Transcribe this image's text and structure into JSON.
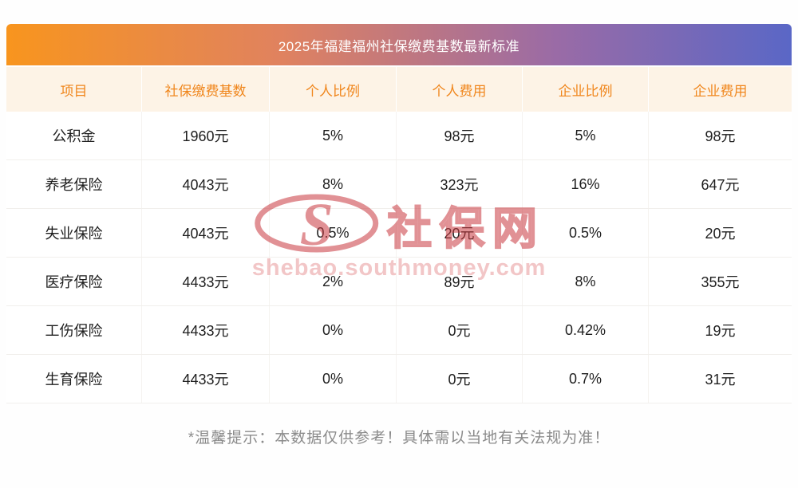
{
  "title": "2025年福建福州社保缴费基数最新标准",
  "chart_data": {
    "type": "table",
    "title": "2025年福建福州社保缴费基数最新标准",
    "columns": [
      "项目",
      "社保缴费基数",
      "个人比例",
      "个人费用",
      "企业比例",
      "企业费用"
    ],
    "rows": [
      [
        "公积金",
        "1960元",
        "5%",
        "98元",
        "5%",
        "98元"
      ],
      [
        "养老保险",
        "4043元",
        "8%",
        "323元",
        "16%",
        "647元"
      ],
      [
        "失业保险",
        "4043元",
        "0.5%",
        "20元",
        "0.5%",
        "20元"
      ],
      [
        "医疗保险",
        "4433元",
        "2%",
        "89元",
        "8%",
        "355元"
      ],
      [
        "工伤保险",
        "4433元",
        "0%",
        "0元",
        "0.42%",
        "19元"
      ],
      [
        "生育保险",
        "4433元",
        "0%",
        "0元",
        "0.7%",
        "31元"
      ]
    ]
  },
  "footer_note": "*温馨提示：本数据仅供参考！具体需以当地有关法规为准！",
  "watermark": {
    "logo_icon": "shebao-s-swoosh-logo",
    "brand": "社保网",
    "url": "shebao.southmoney.com"
  },
  "colors": {
    "gradient_left": "#f8951e",
    "gradient_right": "#5a67c6",
    "header_row_bg": "#fdf3e6",
    "header_text": "#f0861c",
    "body_text": "#1e1e1e",
    "watermark_red": "#c9393f",
    "footer_text": "#8b8b8b"
  }
}
